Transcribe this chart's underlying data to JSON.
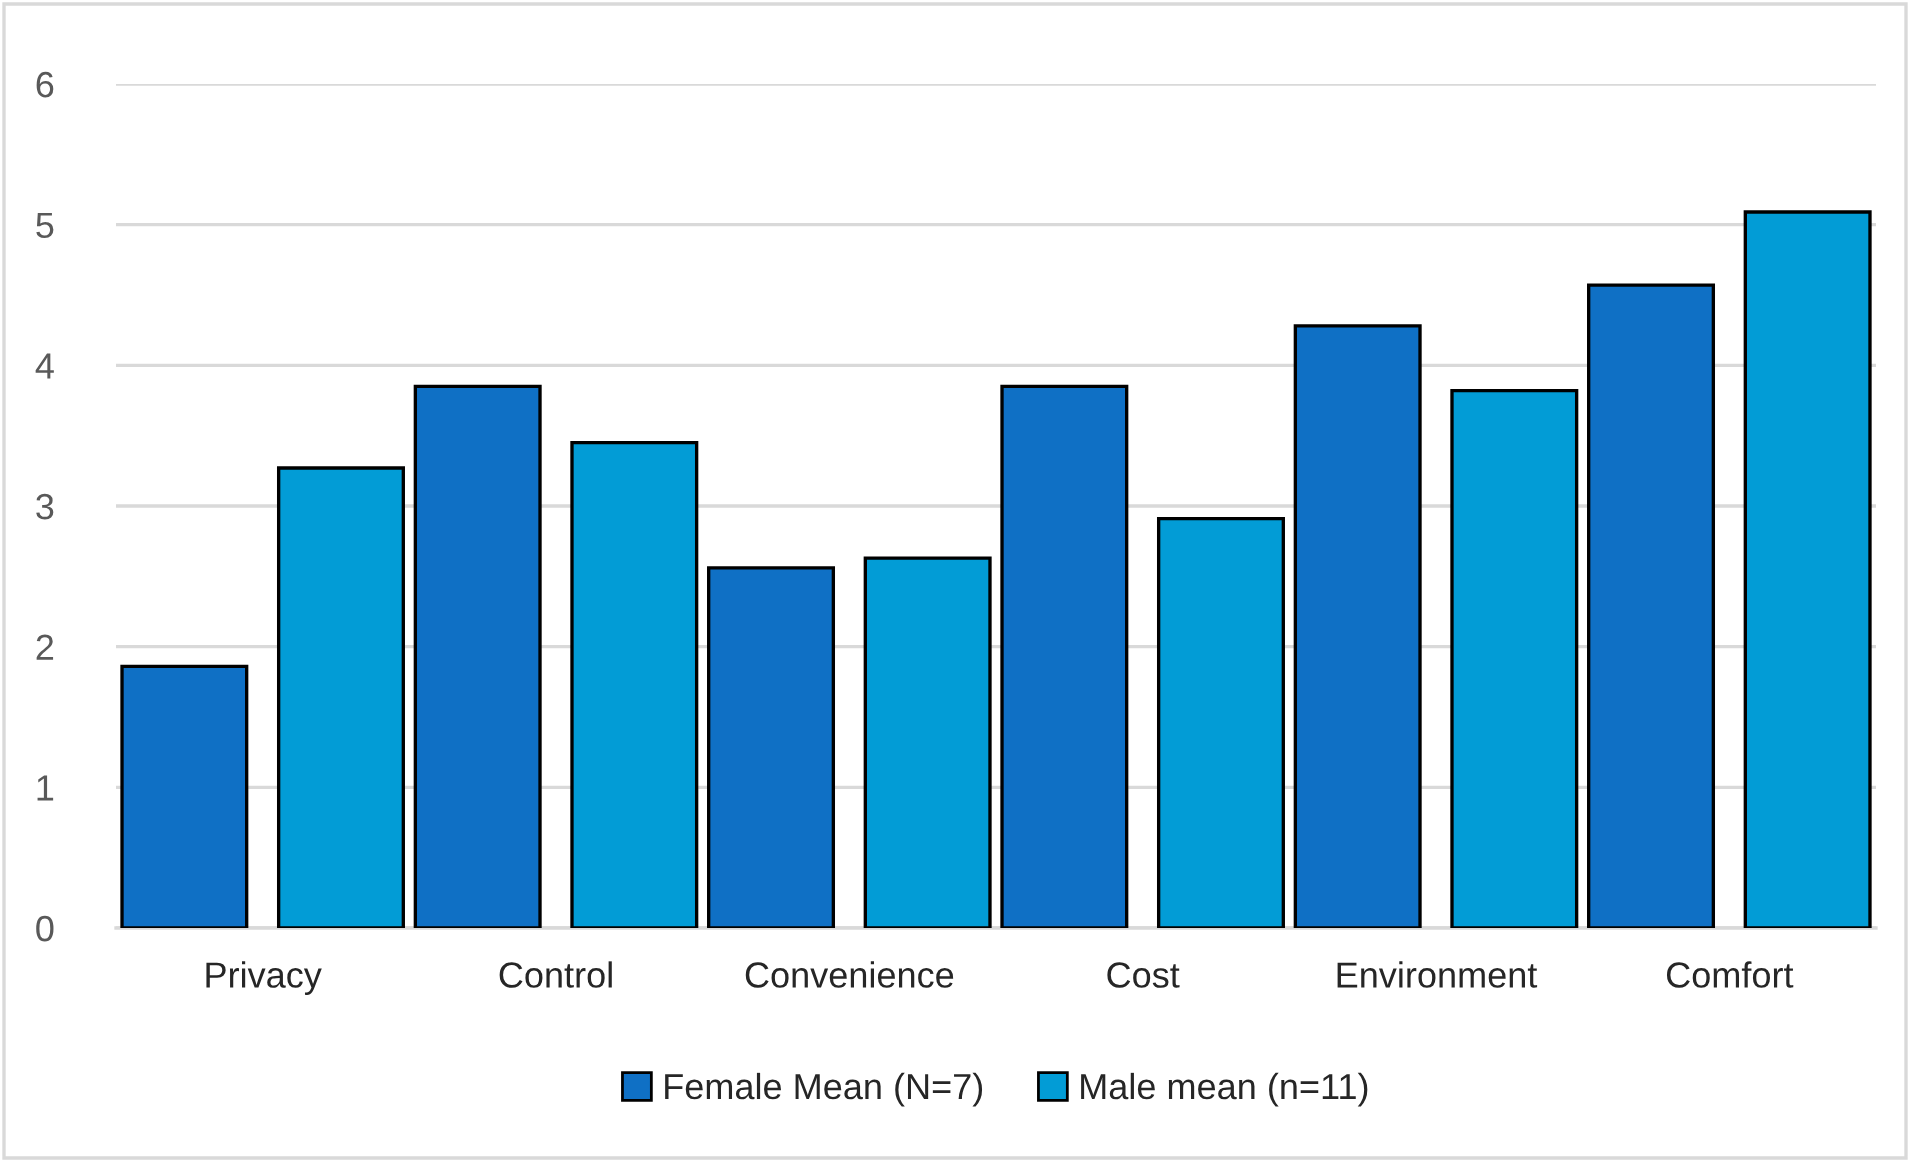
{
  "chart_data": {
    "type": "bar",
    "categories": [
      "Privacy",
      "Control",
      "Convenience",
      "Cost",
      "Environment",
      "Comfort"
    ],
    "series": [
      {
        "name": "Female Mean (N=7)",
        "color": "#0f70c5",
        "values": [
          1.86,
          3.85,
          2.56,
          3.85,
          4.28,
          4.57
        ]
      },
      {
        "name": "Male mean (n=11)",
        "color": "#029cd6",
        "values": [
          3.27,
          3.45,
          2.63,
          2.91,
          3.82,
          5.09
        ]
      }
    ],
    "ylim": [
      0,
      6
    ],
    "yticks": [
      0,
      1,
      2,
      3,
      4,
      5,
      6
    ],
    "grid": "y",
    "legend": "bottom"
  }
}
